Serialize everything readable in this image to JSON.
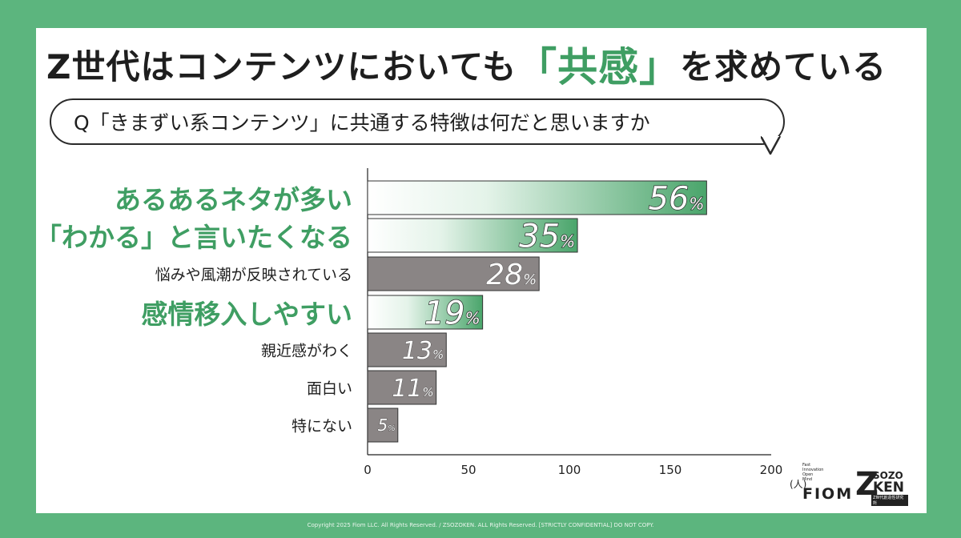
{
  "title": {
    "pre": "Z世代はコンテンツにおいても",
    "highlight": "「共感」",
    "post": "を求めている"
  },
  "question": "Q「きまずい系コンテンツ」に共通する特徴は何だと思いますか",
  "colors": {
    "background": "#5cb57e",
    "accent": "#3f9e63",
    "gray_bar": "#8a8585"
  },
  "chart_data": {
    "type": "bar",
    "orientation": "horizontal",
    "categories": [
      "あるあるネタが多い",
      "「わかる」と言いたくなる",
      "悩みや風潮が反映されている",
      "感情移入しやすい",
      "親近感がわく",
      "面白い",
      "特にない"
    ],
    "values": [
      168,
      104,
      85,
      57,
      39,
      34,
      15
    ],
    "data_labels": [
      "56%",
      "35%",
      "28%",
      "19%",
      "13%",
      "11%",
      "5%"
    ],
    "highlighted": [
      true,
      true,
      false,
      true,
      false,
      false,
      false
    ],
    "xlim": [
      0,
      200
    ],
    "xticks": [
      0,
      50,
      100,
      150,
      200
    ],
    "title": "",
    "xlabel": "",
    "ylabel": ""
  },
  "logos": {
    "fiom_small": [
      "Fast",
      "Innovation",
      "Open",
      "Mind"
    ],
    "fiom_word": "FIOM",
    "fiom_mark": "(人)",
    "sozoken_z": "Z",
    "sozoken_top": "SOZO",
    "sozoken_bottom": "KEN",
    "sozoken_sub": "Z世代創造性研究所"
  },
  "footer": "Copyright 2025 Fiom LLC. All Rights Reserved. / ZSOZOKEN. ALL Rights Reserved. [STRICTLY CONFIDENTIAL] DO NOT COPY."
}
